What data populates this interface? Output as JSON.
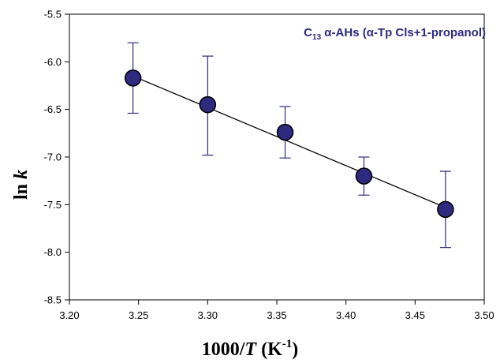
{
  "chart_data": {
    "type": "scatter",
    "annotation": {
      "prefix": "C",
      "subscript": "13",
      "rest": " α-AHs (α-Tp Cls+1-propanol)"
    },
    "xlabel": {
      "lead": "1000/",
      "italic": "T",
      "unit_open": " (K",
      "superscript": "-1",
      "unit_close": ")"
    },
    "ylabel": {
      "lead": "ln ",
      "italic": "k"
    },
    "xlim": [
      3.2,
      3.5
    ],
    "ylim": [
      -8.5,
      -5.5
    ],
    "x_ticks": [
      3.2,
      3.25,
      3.3,
      3.35,
      3.4,
      3.45,
      3.5
    ],
    "x_tick_labels": [
      "3.20",
      "3.25",
      "3.30",
      "3.35",
      "3.40",
      "3.45",
      "3.50"
    ],
    "y_ticks": [
      -5.5,
      -6.0,
      -6.5,
      -7.0,
      -7.5,
      -8.0,
      -8.5
    ],
    "y_tick_labels": [
      "-5.5",
      "-6.0",
      "-6.5",
      "-7.0",
      "-7.5",
      "-8.0",
      "-8.5"
    ],
    "grid": false,
    "points": [
      {
        "x": 3.246,
        "y": -6.17,
        "err_low": -6.54,
        "err_high": -5.8
      },
      {
        "x": 3.3,
        "y": -6.45,
        "err_low": -6.98,
        "err_high": -5.94
      },
      {
        "x": 3.356,
        "y": -6.74,
        "err_low": -7.01,
        "err_high": -6.47
      },
      {
        "x": 3.413,
        "y": -7.2,
        "err_low": -7.4,
        "err_high": -7.0
      },
      {
        "x": 3.472,
        "y": -7.55,
        "err_low": -7.95,
        "err_high": -7.15
      }
    ],
    "fit_line": {
      "x": [
        3.246,
        3.472
      ],
      "y": [
        -6.15,
        -7.53
      ]
    },
    "colors": {
      "marker_fill": "#2e2a80",
      "marker_edge": "#000000",
      "error_bar": "#2e2a80",
      "fit_line": "#000000",
      "annotation": "#2e2a80"
    }
  }
}
